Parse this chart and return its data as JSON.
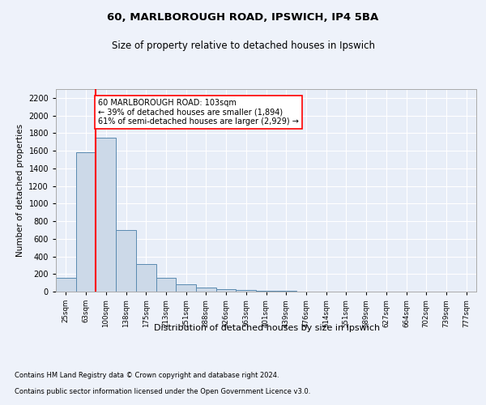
{
  "title1": "60, MARLBOROUGH ROAD, IPSWICH, IP4 5BA",
  "title2": "Size of property relative to detached houses in Ipswich",
  "xlabel": "Distribution of detached houses by size in Ipswich",
  "ylabel": "Number of detached properties",
  "categories": [
    "25sqm",
    "63sqm",
    "100sqm",
    "138sqm",
    "175sqm",
    "213sqm",
    "251sqm",
    "288sqm",
    "326sqm",
    "363sqm",
    "401sqm",
    "439sqm",
    "476sqm",
    "514sqm",
    "551sqm",
    "589sqm",
    "627sqm",
    "664sqm",
    "702sqm",
    "739sqm",
    "777sqm"
  ],
  "values": [
    160,
    1580,
    1750,
    700,
    315,
    160,
    85,
    50,
    25,
    20,
    10,
    5,
    3,
    2,
    1,
    1,
    1,
    0,
    0,
    0,
    0
  ],
  "bar_color": "#ccd9e8",
  "bar_edge_color": "#5a8ab0",
  "vline_color": "red",
  "annotation_text": "60 MARLBOROUGH ROAD: 103sqm\n← 39% of detached houses are smaller (1,894)\n61% of semi-detached houses are larger (2,929) →",
  "annotation_box_color": "white",
  "annotation_box_edge": "red",
  "ylim": [
    0,
    2300
  ],
  "yticks": [
    0,
    200,
    400,
    600,
    800,
    1000,
    1200,
    1400,
    1600,
    1800,
    2000,
    2200
  ],
  "footnote1": "Contains HM Land Registry data © Crown copyright and database right 2024.",
  "footnote2": "Contains public sector information licensed under the Open Government Licence v3.0.",
  "bg_color": "#eef2fa",
  "plot_bg_color": "#e8eef8",
  "grid_color": "#ffffff"
}
